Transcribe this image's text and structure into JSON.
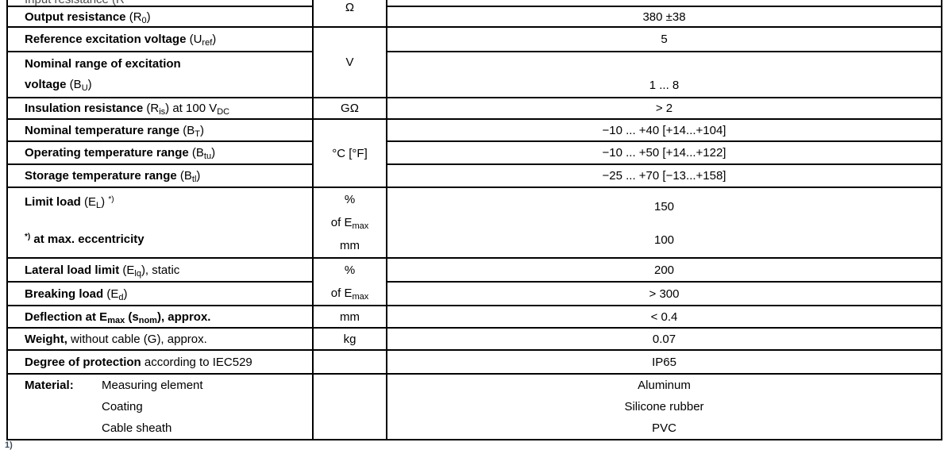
{
  "colors": {
    "background": "#ffffff",
    "border": "#000000",
    "text": "#000000",
    "cut_text": "#4a4a4a",
    "footnote": "#3b4a59"
  },
  "fragments": {
    "top_cut_row_text": "Input resistance (R",
    "bottom_footnote": "1)"
  },
  "table": {
    "columns": [
      "parameter",
      "unit",
      "value"
    ],
    "rows": [
      {
        "h": 8,
        "cells": [
          {
            "col": "param",
            "name": "param-cell",
            "boxcls": "cutbox",
            "lines": [
              [
                {
                  "t": "Input resistance (R"
                }
              ]
            ]
          },
          {
            "col": "unit",
            "name": "unit-cell",
            "rowspan": 2,
            "cls": "vtop",
            "lines": [
              [
                {
                  "t": "Ω"
                }
              ]
            ]
          },
          {
            "col": "value",
            "name": "value-cell",
            "lines": []
          }
        ]
      },
      {
        "h": 26,
        "cells": [
          {
            "col": "param",
            "name": "param-cell",
            "lines": [
              [
                {
                  "t": "Output resistance",
                  "b": 1
                },
                {
                  "t": " (R"
                },
                {
                  "t": "0",
                  "sub": 1
                },
                {
                  "t": ")"
                }
              ]
            ]
          },
          {
            "col": "value",
            "name": "value-cell",
            "lines": [
              [
                {
                  "t": "380 ±38"
                }
              ]
            ]
          }
        ]
      },
      {
        "h": 31,
        "cells": [
          {
            "col": "param",
            "name": "param-cell",
            "lines": [
              [
                {
                  "t": "Reference excitation voltage",
                  "b": 1
                },
                {
                  "t": " (U"
                },
                {
                  "t": "ref",
                  "sub": 1
                },
                {
                  "t": ")"
                }
              ]
            ]
          },
          {
            "col": "unit",
            "name": "unit-cell",
            "rowspan": 2,
            "lines": [
              [
                {
                  "t": "V"
                }
              ]
            ]
          },
          {
            "col": "value",
            "name": "value-cell",
            "lines": [
              [
                {
                  "t": "5"
                }
              ]
            ]
          }
        ]
      },
      {
        "h": 58,
        "cells": [
          {
            "col": "param",
            "name": "param-cell",
            "boxcls": "line26",
            "lines": [
              [
                {
                  "t": "Nominal range of excitation",
                  "b": 1
                }
              ],
              [
                {
                  "t": "voltage",
                  "b": 1
                },
                {
                  "t": " (B"
                },
                {
                  "t": "U",
                  "sub": 1
                },
                {
                  "t": ")"
                }
              ]
            ]
          },
          {
            "col": "value",
            "name": "value-cell",
            "cls": "vbottom",
            "lines": [
              [
                {
                  "t": "1 ... 8"
                }
              ]
            ]
          }
        ]
      },
      {
        "h": 27,
        "cells": [
          {
            "col": "param",
            "name": "param-cell",
            "lines": [
              [
                {
                  "t": "Insulation resistance",
                  "b": 1
                },
                {
                  "t": " (R"
                },
                {
                  "t": "is",
                  "sub": 1
                },
                {
                  "t": ") at 100 V"
                },
                {
                  "t": "DC",
                  "sub": 1
                }
              ]
            ]
          },
          {
            "col": "unit",
            "name": "unit-cell",
            "lines": [
              [
                {
                  "t": "GΩ"
                }
              ]
            ]
          },
          {
            "col": "value",
            "name": "value-cell",
            "lines": [
              [
                {
                  "t": "> 2"
                }
              ]
            ]
          }
        ]
      },
      {
        "h": 28,
        "cells": [
          {
            "col": "param",
            "name": "param-cell",
            "lines": [
              [
                {
                  "t": "Nominal temperature range",
                  "b": 1
                },
                {
                  "t": " (B"
                },
                {
                  "t": "T",
                  "sub": 1
                },
                {
                  "t": ")"
                }
              ]
            ]
          },
          {
            "col": "unit",
            "name": "unit-cell",
            "rowspan": 3,
            "lines": [
              [
                {
                  "t": "°C [°F]"
                }
              ]
            ]
          },
          {
            "col": "value",
            "name": "value-cell",
            "lines": [
              [
                {
                  "t": "−10 ... +40 [+14...+104]"
                }
              ]
            ]
          }
        ]
      },
      {
        "h": 29,
        "cells": [
          {
            "col": "param",
            "name": "param-cell",
            "lines": [
              [
                {
                  "t": "Operating temperature range",
                  "b": 1
                },
                {
                  "t": " (B"
                },
                {
                  "t": "tu",
                  "sub": 1
                },
                {
                  "t": ")"
                }
              ]
            ]
          },
          {
            "col": "value",
            "name": "value-cell",
            "lines": [
              [
                {
                  "t": "−10 ... +50 [+14...+122]"
                }
              ]
            ]
          }
        ]
      },
      {
        "h": 29,
        "cells": [
          {
            "col": "param",
            "name": "param-cell",
            "lines": [
              [
                {
                  "t": "Storage temperature range",
                  "b": 1
                },
                {
                  "t": " (B"
                },
                {
                  "t": "tl",
                  "sub": 1
                },
                {
                  "t": ")"
                }
              ]
            ]
          },
          {
            "col": "value",
            "name": "value-cell",
            "lines": [
              [
                {
                  "t": "−25 ... +70 [−13...+158]"
                }
              ]
            ]
          }
        ]
      },
      {
        "h": 87,
        "cells": [
          {
            "col": "param",
            "name": "param-cell",
            "cls": "vtop",
            "boxcls": "spread",
            "lines": [
              [
                {
                  "t": "Limit load",
                  "b": 1
                },
                {
                  "t": " (E"
                },
                {
                  "t": "L",
                  "sub": 1
                },
                {
                  "t": ") "
                },
                {
                  "t": "*)",
                  "sup": 1
                }
              ],
              [
                {
                  "t": "*)",
                  "sup": 1,
                  "b": 1
                },
                {
                  "t": " at max. eccentricity",
                  "b": 1
                }
              ]
            ]
          },
          {
            "col": "unit",
            "name": "unit-cell",
            "boxcls": "lh29",
            "lines": [
              [
                {
                  "t": "%"
                }
              ],
              [
                {
                  "t": "of E"
                },
                {
                  "t": "max",
                  "sub": 1
                }
              ],
              [
                {
                  "t": "mm"
                }
              ]
            ]
          },
          {
            "col": "value",
            "name": "value-cell",
            "cls": "vtop",
            "boxcls": "limitvals",
            "lines": [
              [
                {
                  "t": "150"
                }
              ],
              [
                {
                  "t": "100"
                }
              ]
            ]
          }
        ]
      },
      {
        "h": 29,
        "cells": [
          {
            "col": "param",
            "name": "param-cell",
            "lines": [
              [
                {
                  "t": "Lateral load limit",
                  "b": 1
                },
                {
                  "t": " (E"
                },
                {
                  "t": "lq",
                  "sub": 1
                },
                {
                  "t": "), static"
                }
              ]
            ]
          },
          {
            "col": "unit",
            "name": "unit-cell",
            "rowspan": 2,
            "boxcls": "lh29",
            "lines": [
              [
                {
                  "t": "%"
                }
              ],
              [
                {
                  "t": "of E"
                },
                {
                  "t": "max",
                  "sub": 1
                }
              ]
            ]
          },
          {
            "col": "value",
            "name": "value-cell",
            "lines": [
              [
                {
                  "t": "200"
                }
              ]
            ]
          }
        ]
      },
      {
        "h": 29,
        "cells": [
          {
            "col": "param",
            "name": "param-cell",
            "lines": [
              [
                {
                  "t": "Breaking load",
                  "b": 1
                },
                {
                  "t": " (E"
                },
                {
                  "t": "d",
                  "sub": 1
                },
                {
                  "t": ")"
                }
              ]
            ]
          },
          {
            "col": "value",
            "name": "value-cell",
            "lines": [
              [
                {
                  "t": "> 300"
                }
              ]
            ]
          }
        ]
      },
      {
        "h": 28,
        "cells": [
          {
            "col": "param",
            "name": "param-cell",
            "lines": [
              [
                {
                  "t": "Deflection at E",
                  "b": 1
                },
                {
                  "t": "max",
                  "sub": 1,
                  "b": 1
                },
                {
                  "t": " (s",
                  "b": 1
                },
                {
                  "t": "nom",
                  "sub": 1,
                  "b": 1
                },
                {
                  "t": "), approx.",
                  "b": 1
                }
              ]
            ]
          },
          {
            "col": "unit",
            "name": "unit-cell",
            "lines": [
              [
                {
                  "t": "mm"
                }
              ]
            ]
          },
          {
            "col": "value",
            "name": "value-cell",
            "lines": [
              [
                {
                  "t": "< 0.4"
                }
              ]
            ]
          }
        ]
      },
      {
        "h": 28,
        "cells": [
          {
            "col": "param",
            "name": "param-cell",
            "lines": [
              [
                {
                  "t": "Weight,",
                  "b": 1
                },
                {
                  "t": " without cable (G), approx."
                }
              ]
            ]
          },
          {
            "col": "unit",
            "name": "unit-cell",
            "lines": [
              [
                {
                  "t": "kg"
                }
              ]
            ]
          },
          {
            "col": "value",
            "name": "value-cell",
            "lines": [
              [
                {
                  "t": "0.07"
                }
              ]
            ]
          }
        ]
      },
      {
        "h": 30,
        "cells": [
          {
            "col": "param",
            "name": "param-cell",
            "lines": [
              [
                {
                  "t": "Degree of protection",
                  "b": 1
                },
                {
                  "t": " according to IEC529"
                }
              ]
            ]
          },
          {
            "col": "unit",
            "name": "unit-cell",
            "lines": []
          },
          {
            "col": "value",
            "name": "value-cell",
            "lines": [
              [
                {
                  "t": "IP65"
                }
              ]
            ]
          }
        ]
      },
      {
        "h": 82,
        "cells": [
          {
            "col": "param",
            "name": "param-cell",
            "boxcls": "lh27",
            "lines": [
              [
                {
                  "t": "Material:",
                  "b": 1,
                  "w": 97
                },
                {
                  "t": "Measuring element"
                }
              ],
              [
                {
                  "t": "",
                  "w": 97
                },
                {
                  "t": "Coating"
                }
              ],
              [
                {
                  "t": "",
                  "w": 97
                },
                {
                  "t": "Cable sheath"
                }
              ]
            ]
          },
          {
            "col": "unit",
            "name": "unit-cell",
            "lines": []
          },
          {
            "col": "value",
            "name": "value-cell",
            "boxcls": "lh27",
            "lines": [
              [
                {
                  "t": "Aluminum"
                }
              ],
              [
                {
                  "t": "Silicone rubber"
                }
              ],
              [
                {
                  "t": "PVC"
                }
              ]
            ]
          }
        ]
      }
    ]
  }
}
